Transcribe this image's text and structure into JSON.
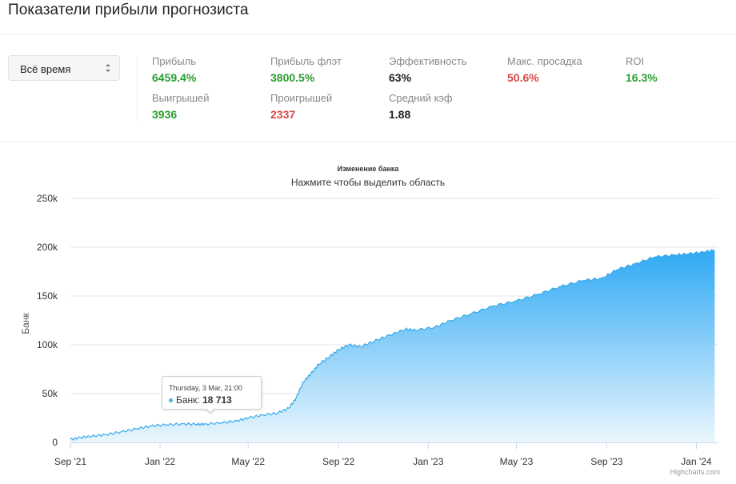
{
  "page": {
    "title": "Показатели прибыли прогнозиста"
  },
  "period_select": {
    "selected": "Всё время"
  },
  "stats": [
    {
      "label": "Прибыль",
      "value": "6459.4%",
      "tone": "green"
    },
    {
      "label": "Прибыль флэт",
      "value": "3800.5%",
      "tone": "green"
    },
    {
      "label": "Эффективность",
      "value": "63%",
      "tone": "dark"
    },
    {
      "label": "Макс. просадка",
      "value": "50.6%",
      "tone": "red"
    },
    {
      "label": "ROI",
      "value": "16.3%",
      "tone": "green"
    },
    {
      "label": "Выигрышей",
      "value": "3936",
      "tone": "green"
    },
    {
      "label": "Проигрышей",
      "value": "2337",
      "tone": "red"
    },
    {
      "label": "Средний кэф",
      "value": "1.88",
      "tone": "dark"
    }
  ],
  "colors": {
    "green": "#2a9d2f",
    "red": "#d94848",
    "area_top": "#2fa9f4",
    "area_bottom": "#eaf6fd",
    "line": "#3aa8e8"
  },
  "chart_data": {
    "type": "area",
    "title": "Изменение банка",
    "subtitle": "Нажмите чтобы выделить область",
    "ylabel": "Банк",
    "xlabel": "",
    "ylim": [
      0,
      250000
    ],
    "yticks": [
      0,
      50000,
      100000,
      150000,
      200000,
      250000
    ],
    "ytick_labels": [
      "0",
      "50k",
      "100k",
      "150k",
      "200k",
      "250k"
    ],
    "xlim": [
      "2021-09-01",
      "2024-01-31"
    ],
    "xticks": [
      "2021-09-01",
      "2022-01-01",
      "2022-05-01",
      "2022-09-01",
      "2023-01-01",
      "2023-05-01",
      "2023-09-01",
      "2024-01-01"
    ],
    "xtick_labels": [
      "Sep '21",
      "Jan '22",
      "May '22",
      "Sep '22",
      "Jan '23",
      "May '23",
      "Sep '23",
      "Jan '24"
    ],
    "grid": true,
    "legend": false,
    "series": [
      {
        "name": "Банк",
        "x": [
          "2021-09-01",
          "2021-09-15",
          "2021-10-01",
          "2021-10-20",
          "2021-11-10",
          "2021-12-01",
          "2021-12-20",
          "2022-01-10",
          "2022-02-01",
          "2022-02-20",
          "2022-03-03",
          "2022-03-25",
          "2022-04-15",
          "2022-05-01",
          "2022-05-20",
          "2022-06-10",
          "2022-06-25",
          "2022-07-05",
          "2022-07-15",
          "2022-07-25",
          "2022-08-05",
          "2022-08-20",
          "2022-09-01",
          "2022-09-15",
          "2022-10-01",
          "2022-10-20",
          "2022-11-10",
          "2022-12-01",
          "2022-12-15",
          "2023-01-10",
          "2023-02-01",
          "2023-03-01",
          "2023-04-01",
          "2023-05-01",
          "2023-06-01",
          "2023-07-01",
          "2023-08-01",
          "2023-08-25",
          "2023-09-15",
          "2023-10-10",
          "2023-11-05",
          "2023-12-01",
          "2023-12-20",
          "2024-01-10",
          "2024-01-26"
        ],
        "y": [
          3000,
          5000,
          6500,
          8000,
          11000,
          14000,
          17000,
          18000,
          19000,
          18500,
          18713,
          20000,
          22000,
          25000,
          28000,
          30000,
          35000,
          45000,
          62000,
          70000,
          80000,
          88000,
          95000,
          100000,
          98000,
          104000,
          110000,
          116000,
          115000,
          118000,
          125000,
          132000,
          140000,
          145000,
          152000,
          160000,
          166000,
          168000,
          177000,
          183000,
          190000,
          192000,
          193000,
          195000,
          197000
        ]
      }
    ],
    "tooltip": {
      "date": "Thursday, 3 Mar, 21:00",
      "series": "Банк",
      "value": "18 713",
      "x": "2022-03-03",
      "y": 18713
    }
  },
  "credits": "Highcharts.com"
}
